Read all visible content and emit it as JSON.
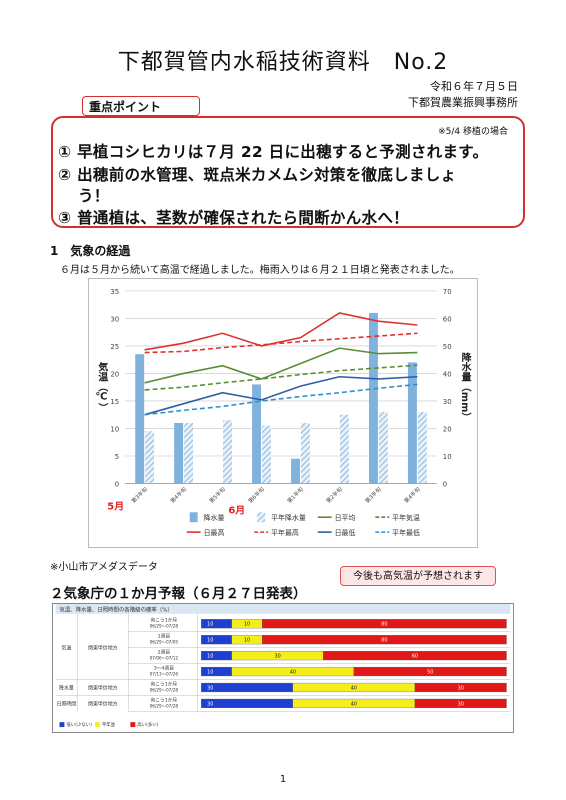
{
  "header": {
    "title": "下都賀管内水稲技術資料　No.2",
    "date": "令和６年７月５日",
    "office": "下都賀農業振興事務所"
  },
  "key_points": {
    "label": "重点ポイント",
    "note": "※5/4 移植の場合",
    "items": [
      "① 早植コシヒカリは７月 22 日に出穂すると予測されます。",
      "② 出穂前の水管理、斑点米カメムシ対策を徹底しましょ",
      "う！",
      "③ 普通植は、茎数が確保されたら間断かん水へ！"
    ]
  },
  "section1": {
    "heading": "1　気象の経過",
    "text": "６月は５月から続いて高温で経過しました。梅雨入りは６月２１日頃と発表されました。",
    "source_note": "※小山市アメダスデータ"
  },
  "chart_data": {
    "type": "bar",
    "categories": [
      "第3半旬",
      "第4半旬",
      "第5半旬",
      "第6半旬",
      "第1半旬",
      "第2半旬",
      "第3半旬",
      "第4半旬"
    ],
    "month_labels": [
      "5月",
      "6月"
    ],
    "ylabel_left": "気温（℃）",
    "ylabel_right": "降水量（mm）",
    "ylim_left": [
      0,
      35
    ],
    "ylim_right": [
      0,
      70
    ],
    "yticks_left": [
      "0",
      "5",
      "10",
      "15",
      "20",
      "25",
      "30",
      "35"
    ],
    "yticks_right": [
      "0",
      "10",
      "20",
      "30",
      "40",
      "50",
      "60",
      "70"
    ],
    "grid": true,
    "bars": [
      {
        "name": "降水量",
        "values": [
          47,
          22,
          0,
          36,
          9,
          0,
          62,
          44
        ],
        "color": "#7fb2dc"
      },
      {
        "name": "平年降水量",
        "values": [
          19,
          22,
          23,
          21,
          22,
          25,
          26,
          26
        ],
        "color": "#a9c9e6",
        "hatch": true
      }
    ],
    "lines": [
      {
        "name": "日平均",
        "values": [
          18.3,
          20.0,
          21.4,
          19.0,
          21.8,
          24.6,
          23.6,
          23.8
        ],
        "color": "#5a8e32",
        "dash": false
      },
      {
        "name": "平年気温",
        "values": [
          17.0,
          17.5,
          18.3,
          19.0,
          19.8,
          20.5,
          21.0,
          21.5
        ],
        "color": "#5a8e32",
        "dash": true
      },
      {
        "name": "日最高",
        "values": [
          24.3,
          25.5,
          27.3,
          25.0,
          26.5,
          31.0,
          29.5,
          28.8
        ],
        "color": "#e03030",
        "dash": false
      },
      {
        "name": "平年最高",
        "values": [
          23.8,
          24.0,
          24.7,
          25.2,
          25.8,
          26.3,
          26.8,
          27.3
        ],
        "color": "#e03030",
        "dash": true
      },
      {
        "name": "日最低",
        "values": [
          12.5,
          14.5,
          16.5,
          15.2,
          17.7,
          19.4,
          19.0,
          19.4
        ],
        "color": "#2e5fa8",
        "dash": false
      },
      {
        "name": "平年最低",
        "values": [
          12.5,
          13.3,
          14.0,
          15.0,
          15.8,
          16.5,
          17.3,
          18.0
        ],
        "color": "#2e8fd0",
        "dash": true
      }
    ]
  },
  "section2": {
    "heading": "２気象庁の１か月予報（６月２７日発表）",
    "callout": "今後も高気温が予想されます",
    "table_title": "気温、降水量、日照時間の各階級の確率（%）",
    "rows": [
      {
        "element": "気温",
        "region": "関東甲信地方",
        "period": "向こう1か月",
        "dates": "06/29〜07/28",
        "low": 10,
        "normal": 10,
        "high": 80
      },
      {
        "element": "",
        "region": "",
        "period": "1週目",
        "dates": "06/29〜07/05",
        "low": 10,
        "normal": 10,
        "high": 80
      },
      {
        "element": "",
        "region": "",
        "period": "2週目",
        "dates": "07/06〜07/12",
        "low": 10,
        "normal": 30,
        "high": 60
      },
      {
        "element": "",
        "region": "",
        "period": "3〜4週目",
        "dates": "07/13〜07/26",
        "low": 10,
        "normal": 40,
        "high": 50
      },
      {
        "element": "降水量",
        "region": "関東甲信地方",
        "period": "向こう1か月",
        "dates": "06/29〜07/28",
        "low": 30,
        "normal": 40,
        "high": 30
      },
      {
        "element": "日照時間",
        "region": "関東甲信地方",
        "period": "向こう1か月",
        "dates": "06/29〜07/28",
        "low": 30,
        "normal": 40,
        "high": 30
      }
    ],
    "legend": [
      "低い(少ない)",
      "平年並",
      "高い(多い)"
    ],
    "colors": {
      "low": "#1f3fd0",
      "normal": "#f5ee1a",
      "high": "#e01818"
    }
  },
  "page_number": "1"
}
